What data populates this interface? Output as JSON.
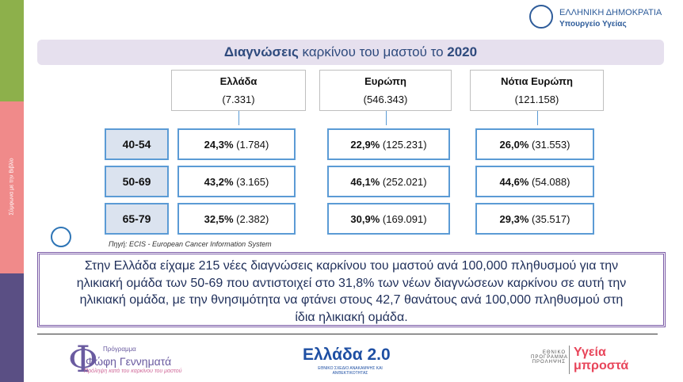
{
  "header": {
    "country": "ΕΛΛΗΝΙΚΗ ΔΗΜΟΚΡΑΤΙΑ",
    "ministry": "Υπουργείο Υγείας"
  },
  "sidebar": "Σύμφωνα με την Βιβλίο",
  "title": {
    "bold1": "Διαγνώσεις",
    "normal": " καρκίνου του μαστού το ",
    "bold2": "2020"
  },
  "columns": [
    {
      "name": "Ελλάδα",
      "total": "(7.331)"
    },
    {
      "name": "Ευρώπη",
      "total": "(546.343)"
    },
    {
      "name": "Νότια Ευρώπη",
      "total": "(121.158)"
    }
  ],
  "age_groups": [
    "40-54",
    "50-69",
    "65-79"
  ],
  "cells": [
    [
      {
        "pct": "24,3%",
        "count": "(1.784)"
      },
      {
        "pct": "22,9%",
        "count": "(125.231)"
      },
      {
        "pct": "26,0%",
        "count": "(31.553)"
      }
    ],
    [
      {
        "pct": "43,2%",
        "count": "(3.165)"
      },
      {
        "pct": "46,1%",
        "count": "(252.021)"
      },
      {
        "pct": "44,6%",
        "count": "(54.088)"
      }
    ],
    [
      {
        "pct": "32,5%",
        "count": "(2.382)"
      },
      {
        "pct": "30,9%",
        "count": "(169.091)"
      },
      {
        "pct": "29,3%",
        "count": "(35.517)"
      }
    ]
  ],
  "source": "Πηγή: ECIS - European Cancer Information System",
  "summary": [
    "Στην Ελλάδα είχαμε 215 νέες διαγνώσεις καρκίνου του μαστού ανά 100,000 πληθυσμού για την",
    "ηλικιακή ομάδα των 50-69 που αντιστοιχεί στο 31,8% των νέων διαγνώσεων καρκίνου σε αυτή την",
    "ηλικιακή ομάδα, με την θνησιμότητα να φτάνει στους 42,7 θανάτους ανά 100,000 πληθυσμού στη",
    "ίδια ηλικιακή ομάδα."
  ],
  "footer": {
    "program_label": "Πρόγραμμα",
    "program_name": "Φώφη Γεννηματά",
    "program_tagline": "Πρόληψη κατά του καρκίνου του μαστού",
    "greece2": "Ελλάδα 2.0",
    "greece2_sub": "ΕΘΝΙΚΟ ΣΧΕΔΙΟ ΑΝΑΚΑΜΨΗΣ ΚΑΙ ΑΝΘΕΚΤΙΚΟΤΗΤΑΣ",
    "national": "ΕΘΝΙΚΟ ΠΡΟΓΡΑΜΜΑ ΠΡΟΛΗΨΗΣ",
    "health": "Υγεία μπροστά"
  }
}
